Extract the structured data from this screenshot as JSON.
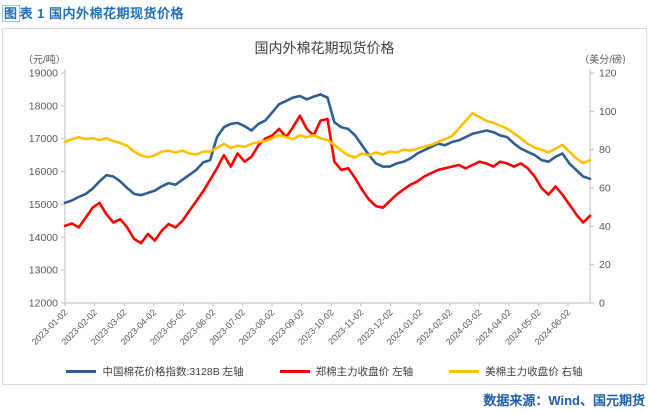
{
  "header": {
    "caption": "图表 1 国内外棉花期现货价格"
  },
  "source": {
    "text": "数据来源：Wind、国元期货"
  },
  "colors": {
    "caption_blue": "#2170b8",
    "source_blue": "#1e5da9",
    "box_border": "#d9d9d9",
    "axis_line": "#bfbfbf",
    "tick_text": "#595959",
    "title_text": "#404040"
  },
  "chart_data": {
    "type": "line",
    "title": "国内外棉花期现货价格",
    "legend_position": "bottom",
    "grid": false,
    "left_axis": {
      "unit": "（元/吨）",
      "min": 12000,
      "max": 19000,
      "step": 1000,
      "ticks": [
        19000,
        18000,
        17000,
        16000,
        15000,
        14000,
        13000,
        12000
      ]
    },
    "right_axis": {
      "unit": "（美分/磅）",
      "min": 0,
      "max": 120,
      "step": 20,
      "ticks": [
        120,
        100,
        80,
        60,
        40,
        20,
        0
      ]
    },
    "x_ticks": [
      "2023-01-02",
      "2023-02-02",
      "2023-03-02",
      "2023-04-02",
      "2023-05-02",
      "2023-06-02",
      "2023-07-02",
      "2023-08-02",
      "2023-09-02",
      "2023-10-02",
      "2023-11-02",
      "2023-12-02",
      "2024-01-02",
      "2024-02-02",
      "2024-03-02",
      "2024-04-02",
      "2024-05-02",
      "2024-06-02"
    ],
    "series": [
      {
        "name": "中国棉花价格指数:3128B 左轴",
        "axis": "left",
        "color": "#2f5e91",
        "values": [
          15050,
          15120,
          15230,
          15320,
          15480,
          15700,
          15890,
          15850,
          15700,
          15500,
          15320,
          15280,
          15350,
          15420,
          15550,
          15650,
          15600,
          15750,
          15900,
          16050,
          16280,
          16350,
          17050,
          17350,
          17450,
          17480,
          17380,
          17250,
          17450,
          17550,
          17800,
          18050,
          18150,
          18250,
          18300,
          18200,
          18280,
          18350,
          18250,
          17500,
          17350,
          17300,
          17100,
          16800,
          16500,
          16250,
          16150,
          16150,
          16250,
          16300,
          16400,
          16550,
          16650,
          16750,
          16850,
          16800,
          16900,
          16950,
          17050,
          17150,
          17200,
          17250,
          17200,
          17100,
          17050,
          16850,
          16700,
          16600,
          16500,
          16350,
          16300,
          16450,
          16550,
          16250,
          16050,
          15850,
          15780
        ]
      },
      {
        "name": "郑棉主力收盘价 左轴",
        "axis": "left",
        "color": "#ff0000",
        "values": [
          14350,
          14420,
          14300,
          14600,
          14900,
          15050,
          14700,
          14450,
          14550,
          14300,
          13950,
          13820,
          14100,
          13900,
          14200,
          14400,
          14300,
          14500,
          14800,
          15100,
          15400,
          15750,
          16100,
          16500,
          16150,
          16550,
          16300,
          16450,
          16800,
          17000,
          17100,
          17300,
          17050,
          17350,
          17700,
          17300,
          17100,
          17550,
          17600,
          16300,
          16050,
          16100,
          15800,
          15450,
          15150,
          14950,
          14900,
          15100,
          15300,
          15450,
          15600,
          15700,
          15850,
          15950,
          16050,
          16100,
          16150,
          16200,
          16100,
          16200,
          16300,
          16250,
          16150,
          16300,
          16250,
          16150,
          16250,
          16100,
          15850,
          15500,
          15300,
          15550,
          15300,
          15000,
          14700,
          14450,
          14650
        ]
      },
      {
        "name": "美棉主力收盘价 右轴",
        "axis": "right",
        "color": "#ffc000",
        "values": [
          84,
          85.5,
          86.5,
          85.5,
          86,
          85,
          86,
          84.5,
          83.5,
          82,
          79,
          77,
          76,
          77,
          79,
          79.5,
          78.5,
          79.5,
          78,
          77.5,
          79,
          79,
          81,
          83,
          81,
          82,
          81.5,
          83,
          84,
          84.5,
          86,
          87.5,
          86.5,
          85.5,
          87.5,
          86.5,
          87.5,
          86,
          85,
          82.5,
          79.5,
          77,
          76,
          78,
          77,
          78.5,
          77.5,
          79,
          78.5,
          80,
          79.5,
          80.5,
          81.5,
          82.5,
          84,
          85.5,
          87,
          91,
          95,
          99,
          97,
          95,
          94,
          92.5,
          91,
          88.5,
          86,
          83,
          81,
          80,
          78.5,
          80.5,
          82.5,
          79,
          75.5,
          73,
          74.5
        ]
      }
    ]
  }
}
